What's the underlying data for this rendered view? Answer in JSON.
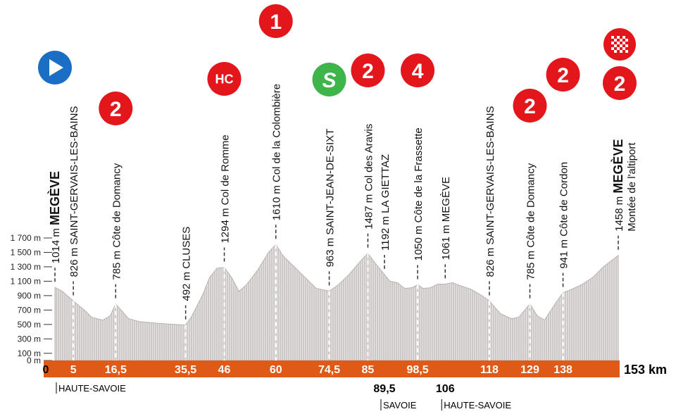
{
  "chart_data": {
    "type": "area",
    "x_unit": "km",
    "y_unit": "m",
    "distance_total": 153,
    "y_ticks": [
      0,
      100,
      300,
      500,
      700,
      900,
      1100,
      1300,
      1500,
      1700
    ],
    "y_tick_labels": [
      "0 m",
      "100 m",
      "300 m",
      "500 m",
      "700 m",
      "900 m",
      "1 100 m",
      "1 300 m",
      "1 500 m",
      "1 700 m"
    ],
    "profile": [
      [
        0,
        1014
      ],
      [
        2,
        960
      ],
      [
        5,
        826
      ],
      [
        8,
        700
      ],
      [
        10,
        600
      ],
      [
        13,
        560
      ],
      [
        15,
        620
      ],
      [
        16.5,
        785
      ],
      [
        18,
        700
      ],
      [
        20,
        580
      ],
      [
        23,
        540
      ],
      [
        27,
        520
      ],
      [
        31,
        505
      ],
      [
        35.5,
        492
      ],
      [
        37,
        600
      ],
      [
        40,
        900
      ],
      [
        42,
        1150
      ],
      [
        44,
        1280
      ],
      [
        46,
        1294
      ],
      [
        48,
        1150
      ],
      [
        50,
        960
      ],
      [
        52,
        1050
      ],
      [
        55,
        1250
      ],
      [
        58,
        1500
      ],
      [
        60,
        1610
      ],
      [
        62,
        1450
      ],
      [
        65,
        1300
      ],
      [
        68,
        1150
      ],
      [
        71,
        1000
      ],
      [
        74.5,
        963
      ],
      [
        77,
        1050
      ],
      [
        80,
        1200
      ],
      [
        83,
        1380
      ],
      [
        85,
        1487
      ],
      [
        87,
        1350
      ],
      [
        89.5,
        1192
      ],
      [
        91,
        1100
      ],
      [
        93,
        1080
      ],
      [
        95,
        1000
      ],
      [
        97,
        1010
      ],
      [
        98.5,
        1050
      ],
      [
        100,
        1000
      ],
      [
        102,
        1010
      ],
      [
        104,
        1060
      ],
      [
        106,
        1061
      ],
      [
        108,
        1080
      ],
      [
        110,
        1040
      ],
      [
        113,
        990
      ],
      [
        116,
        900
      ],
      [
        118,
        826
      ],
      [
        121,
        650
      ],
      [
        124,
        580
      ],
      [
        126,
        600
      ],
      [
        129,
        785
      ],
      [
        131,
        620
      ],
      [
        133,
        560
      ],
      [
        136,
        800
      ],
      [
        138,
        941
      ],
      [
        140,
        980
      ],
      [
        143,
        1050
      ],
      [
        146,
        1150
      ],
      [
        149,
        1300
      ],
      [
        151,
        1380
      ],
      [
        153,
        1458
      ]
    ],
    "km_markers": [
      {
        "km": 0,
        "label": "0"
      },
      {
        "km": 5,
        "label": "5"
      },
      {
        "km": 16.5,
        "label": "16,5"
      },
      {
        "km": 35.5,
        "label": "35,5"
      },
      {
        "km": 46,
        "label": "46"
      },
      {
        "km": 60,
        "label": "60"
      },
      {
        "km": 74.5,
        "label": "74,5"
      },
      {
        "km": 85,
        "label": "85"
      },
      {
        "km": 98.5,
        "label": "98,5"
      },
      {
        "km": 118,
        "label": "118"
      },
      {
        "km": 129,
        "label": "129"
      },
      {
        "km": 138,
        "label": "138"
      }
    ],
    "end_label": "153 km",
    "below_markers": [
      {
        "km": 89.5,
        "label": "89,5"
      },
      {
        "km": 106,
        "label": "106"
      }
    ],
    "regions": [
      {
        "km": 0,
        "label": "HAUTE-SAVOIE"
      },
      {
        "km": 89.5,
        "label": "SAVOIE"
      },
      {
        "km": 106,
        "label": "HAUTE-SAVOIE"
      }
    ],
    "places": [
      {
        "km": 0,
        "alt": "1014 m",
        "name": "MEGÈVE",
        "bold": true
      },
      {
        "km": 5,
        "alt": "826 m",
        "name": "SAINT-GERVAIS-LES-BAINS"
      },
      {
        "km": 16.5,
        "alt": "785 m",
        "name": "Côte de Domancy"
      },
      {
        "km": 35.5,
        "alt": "492 m",
        "name": "CLUSES"
      },
      {
        "km": 46,
        "alt": "1294 m",
        "name": "Col de Romme"
      },
      {
        "km": 60,
        "alt": "1610 m",
        "name": "Col de la Colombière"
      },
      {
        "km": 74.5,
        "alt": "963 m",
        "name": "SAINT-JEAN-DE-SIXT"
      },
      {
        "km": 85,
        "alt": "1487 m",
        "name": "Col des Aravis"
      },
      {
        "km": 89.5,
        "alt": "1192 m",
        "name": "LA GIETTAZ"
      },
      {
        "km": 98.5,
        "alt": "1050 m",
        "name": "Côte de la Frassette"
      },
      {
        "km": 106,
        "alt": "1061 m",
        "name": "MEGÈVE"
      },
      {
        "km": 118,
        "alt": "826 m",
        "name": "SAINT-GERVAIS-LES-BAINS"
      },
      {
        "km": 129,
        "alt": "785 m",
        "name": "Côte de Domancy"
      },
      {
        "km": 138,
        "alt": "941 m",
        "name": "Côte de Cordon"
      },
      {
        "km": 153,
        "alt": "1458 m",
        "name": "MEGÈVE",
        "bold": true,
        "sub": "Montée de l'altiport"
      }
    ],
    "badges": [
      {
        "km": 0,
        "kind": "start",
        "text": "",
        "color": "#1a6fc4"
      },
      {
        "km": 16.5,
        "kind": "category",
        "text": "2",
        "color": "#e3161b"
      },
      {
        "km": 46,
        "kind": "category",
        "text": "HC",
        "color": "#e3161b"
      },
      {
        "km": 60,
        "kind": "category",
        "text": "1",
        "color": "#e3161b"
      },
      {
        "km": 74.5,
        "kind": "sprint",
        "text": "S",
        "color": "#3db54a"
      },
      {
        "km": 85,
        "kind": "category",
        "text": "2",
        "color": "#e3161b"
      },
      {
        "km": 98.5,
        "kind": "category",
        "text": "4",
        "color": "#e3161b"
      },
      {
        "km": 129,
        "kind": "category",
        "text": "2",
        "color": "#e3161b"
      },
      {
        "km": 138,
        "kind": "category",
        "text": "2",
        "color": "#e3161b"
      },
      {
        "km": 153,
        "kind": "category",
        "text": "2",
        "color": "#e3161b"
      },
      {
        "km": 153,
        "kind": "finish",
        "text": "",
        "color": "#e3161b"
      }
    ],
    "colors": {
      "profile_fill": "#cdc8c8",
      "profile_stripe": "#e8e5e5",
      "road_band": "#e05a17",
      "category": "#e3161b",
      "sprint": "#3db54a",
      "start": "#1a6fc4"
    }
  }
}
